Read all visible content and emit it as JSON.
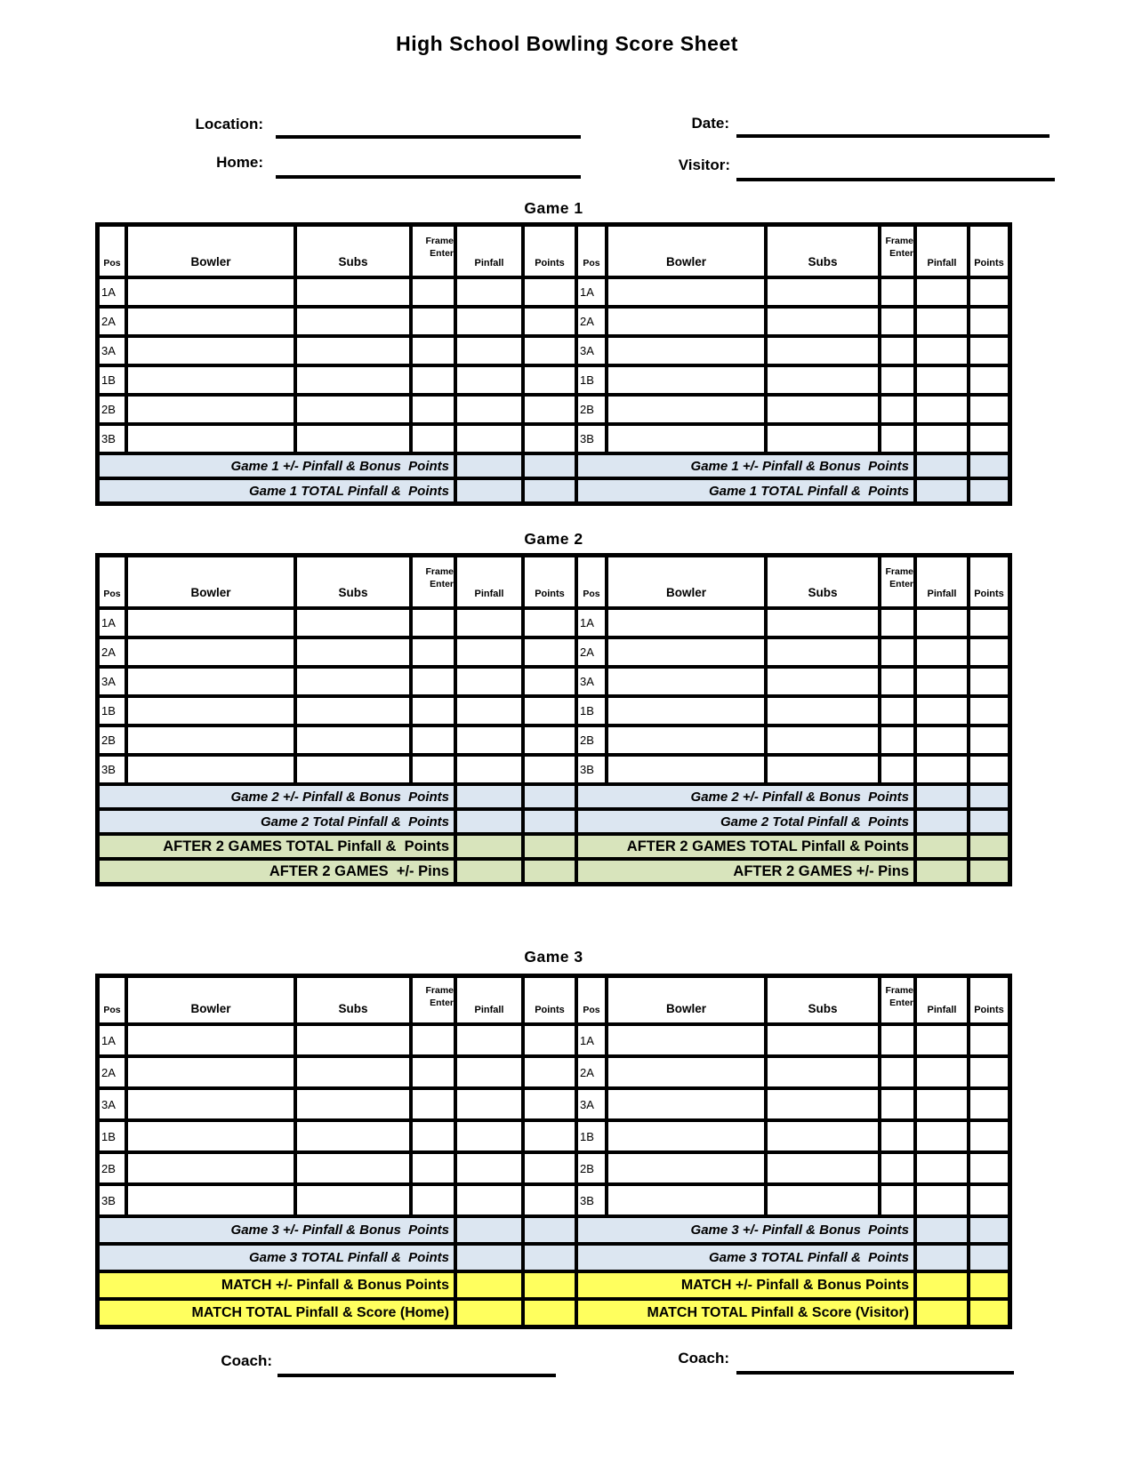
{
  "page": {
    "title": "High School Bowling Score Sheet"
  },
  "form": {
    "location_label": "Location:",
    "date_label": "Date:",
    "home_label": "Home:",
    "visitor_label": "Visitor:",
    "location_value": "",
    "date_value": "",
    "home_value": "",
    "visitor_value": ""
  },
  "footer": {
    "coach_left_label": "Coach:",
    "coach_right_label": "Coach:",
    "coach_left_value": "",
    "coach_right_value": ""
  },
  "table": {
    "headers": {
      "pos": "Pos",
      "bowler": "Bowler",
      "subs": "Subs",
      "frame_line1": "Frame",
      "frame_line2": "Enter",
      "pinfall": "Pinfall",
      "points": "Points"
    },
    "row_labels": [
      "1A",
      "2A",
      "3A",
      "1B",
      "2B",
      "3B"
    ]
  },
  "games": [
    {
      "title": "Game 1",
      "summary_rows": [
        {
          "left": "Game 1 +/- Pinfall & Bonus  Points",
          "right": "Game 1 +/- Pinfall & Bonus  Points",
          "style": "blue"
        },
        {
          "left": "Game 1 TOTAL Pinfall &  Points",
          "right": "Game 1 TOTAL Pinfall &  Points",
          "style": "blue"
        }
      ]
    },
    {
      "title": "Game 2",
      "summary_rows": [
        {
          "left": "Game 2 +/- Pinfall & Bonus  Points",
          "right": "Game 2 +/- Pinfall & Bonus  Points",
          "style": "blue"
        },
        {
          "left": "Game 2 Total Pinfall &  Points",
          "right": "Game 2 Total Pinfall &  Points",
          "style": "blue"
        },
        {
          "left": "AFTER 2 GAMES TOTAL Pinfall &  Points",
          "right": "AFTER 2 GAMES TOTAL Pinfall & Points",
          "style": "green"
        },
        {
          "left": "AFTER 2 GAMES  +/- Pins",
          "right": "AFTER 2 GAMES +/- Pins",
          "style": "green"
        }
      ]
    },
    {
      "title": "Game 3",
      "summary_rows": [
        {
          "left": "Game 3 +/- Pinfall & Bonus  Points",
          "right": "Game 3 +/- Pinfall & Bonus  Points",
          "style": "blue"
        },
        {
          "left": "Game 3 TOTAL Pinfall &  Points",
          "right": "Game 3 TOTAL Pinfall &  Points",
          "style": "blue"
        },
        {
          "left": "MATCH +/- Pinfall & Bonus Points",
          "right": "MATCH +/- Pinfall & Bonus Points",
          "style": "yellow"
        },
        {
          "left": "MATCH TOTAL Pinfall & Score (Home)",
          "right": "MATCH TOTAL Pinfall & Score (Visitor)",
          "style": "yellow"
        }
      ]
    }
  ],
  "colors": {
    "summary_blue": "#dce6f1",
    "summary_green": "#d8e4bc",
    "summary_yellow": "#ffff5e",
    "border": "#000000"
  }
}
